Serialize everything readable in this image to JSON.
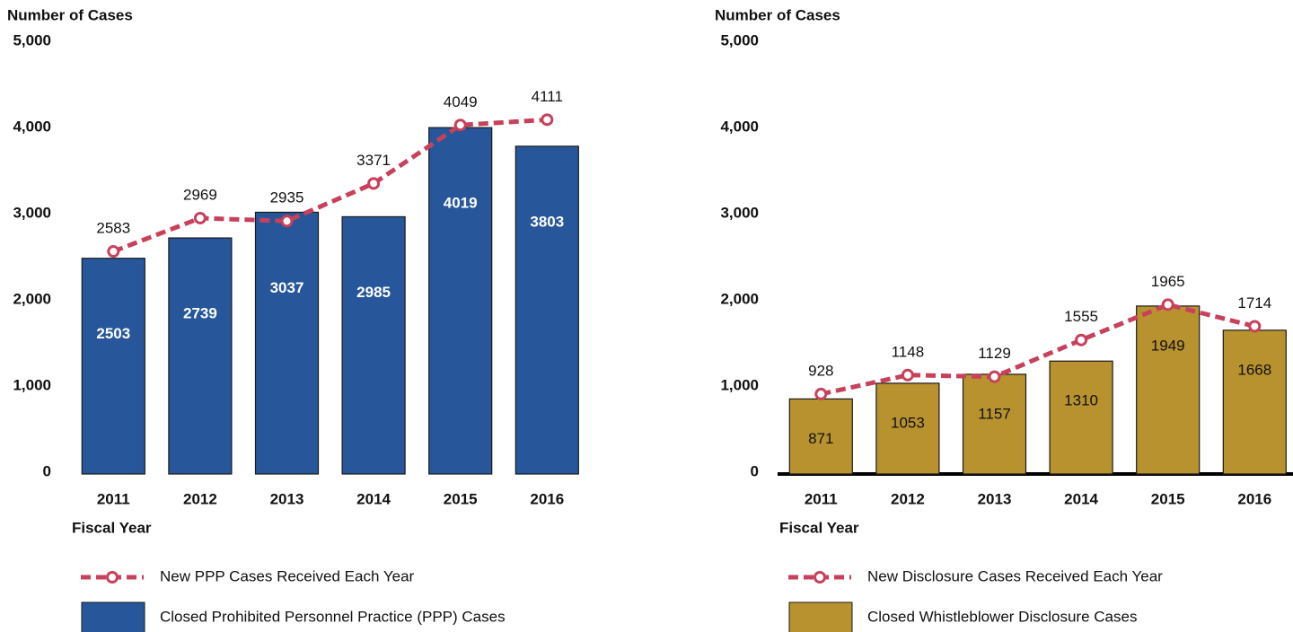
{
  "chart_data": [
    {
      "type": "bar",
      "ylabel": "Number of Cases",
      "xlabel": "Fiscal Year",
      "categories": [
        "2011",
        "2012",
        "2013",
        "2014",
        "2015",
        "2016"
      ],
      "ylim": [
        0,
        5000
      ],
      "yticks": [
        0,
        {
          "value": 1000,
          "label": "1,000"
        },
        {
          "value": 2000,
          "label": "2,000"
        },
        {
          "value": 3000,
          "label": "3,000"
        },
        {
          "value": 4000,
          "label": "4,000"
        },
        {
          "value": 5000,
          "label": "5,000"
        }
      ],
      "series": [
        {
          "name": "Closed Prohibited Personnel Practice (PPP) Cases",
          "type": "bar",
          "color": "#27579a",
          "values": [
            2503,
            2739,
            3037,
            2985,
            4019,
            3803
          ]
        },
        {
          "name": "New PPP Cases Received Each Year",
          "type": "line",
          "color": "#c8415a",
          "values": [
            2583,
            2969,
            2935,
            3371,
            4049,
            4111
          ]
        }
      ]
    },
    {
      "type": "bar",
      "ylabel": "Number of Cases",
      "xlabel": "Fiscal Year",
      "categories": [
        "2011",
        "2012",
        "2013",
        "2014",
        "2015",
        "2016"
      ],
      "ylim": [
        0,
        5000
      ],
      "yticks": [
        0,
        {
          "value": 1000,
          "label": "1,000"
        },
        {
          "value": 2000,
          "label": "2,000"
        },
        {
          "value": 3000,
          "label": "3,000"
        },
        {
          "value": 4000,
          "label": "4,000"
        },
        {
          "value": 5000,
          "label": "5,000"
        }
      ],
      "series": [
        {
          "name": "Closed Whistleblower Disclosure Cases",
          "type": "bar",
          "color": "#b8922f",
          "values": [
            871,
            1053,
            1157,
            1310,
            1949,
            1668
          ]
        },
        {
          "name": "New Disclosure Cases Received Each Year",
          "type": "line",
          "color": "#c8415a",
          "values": [
            928,
            1148,
            1129,
            1555,
            1965,
            1714
          ]
        }
      ]
    }
  ]
}
